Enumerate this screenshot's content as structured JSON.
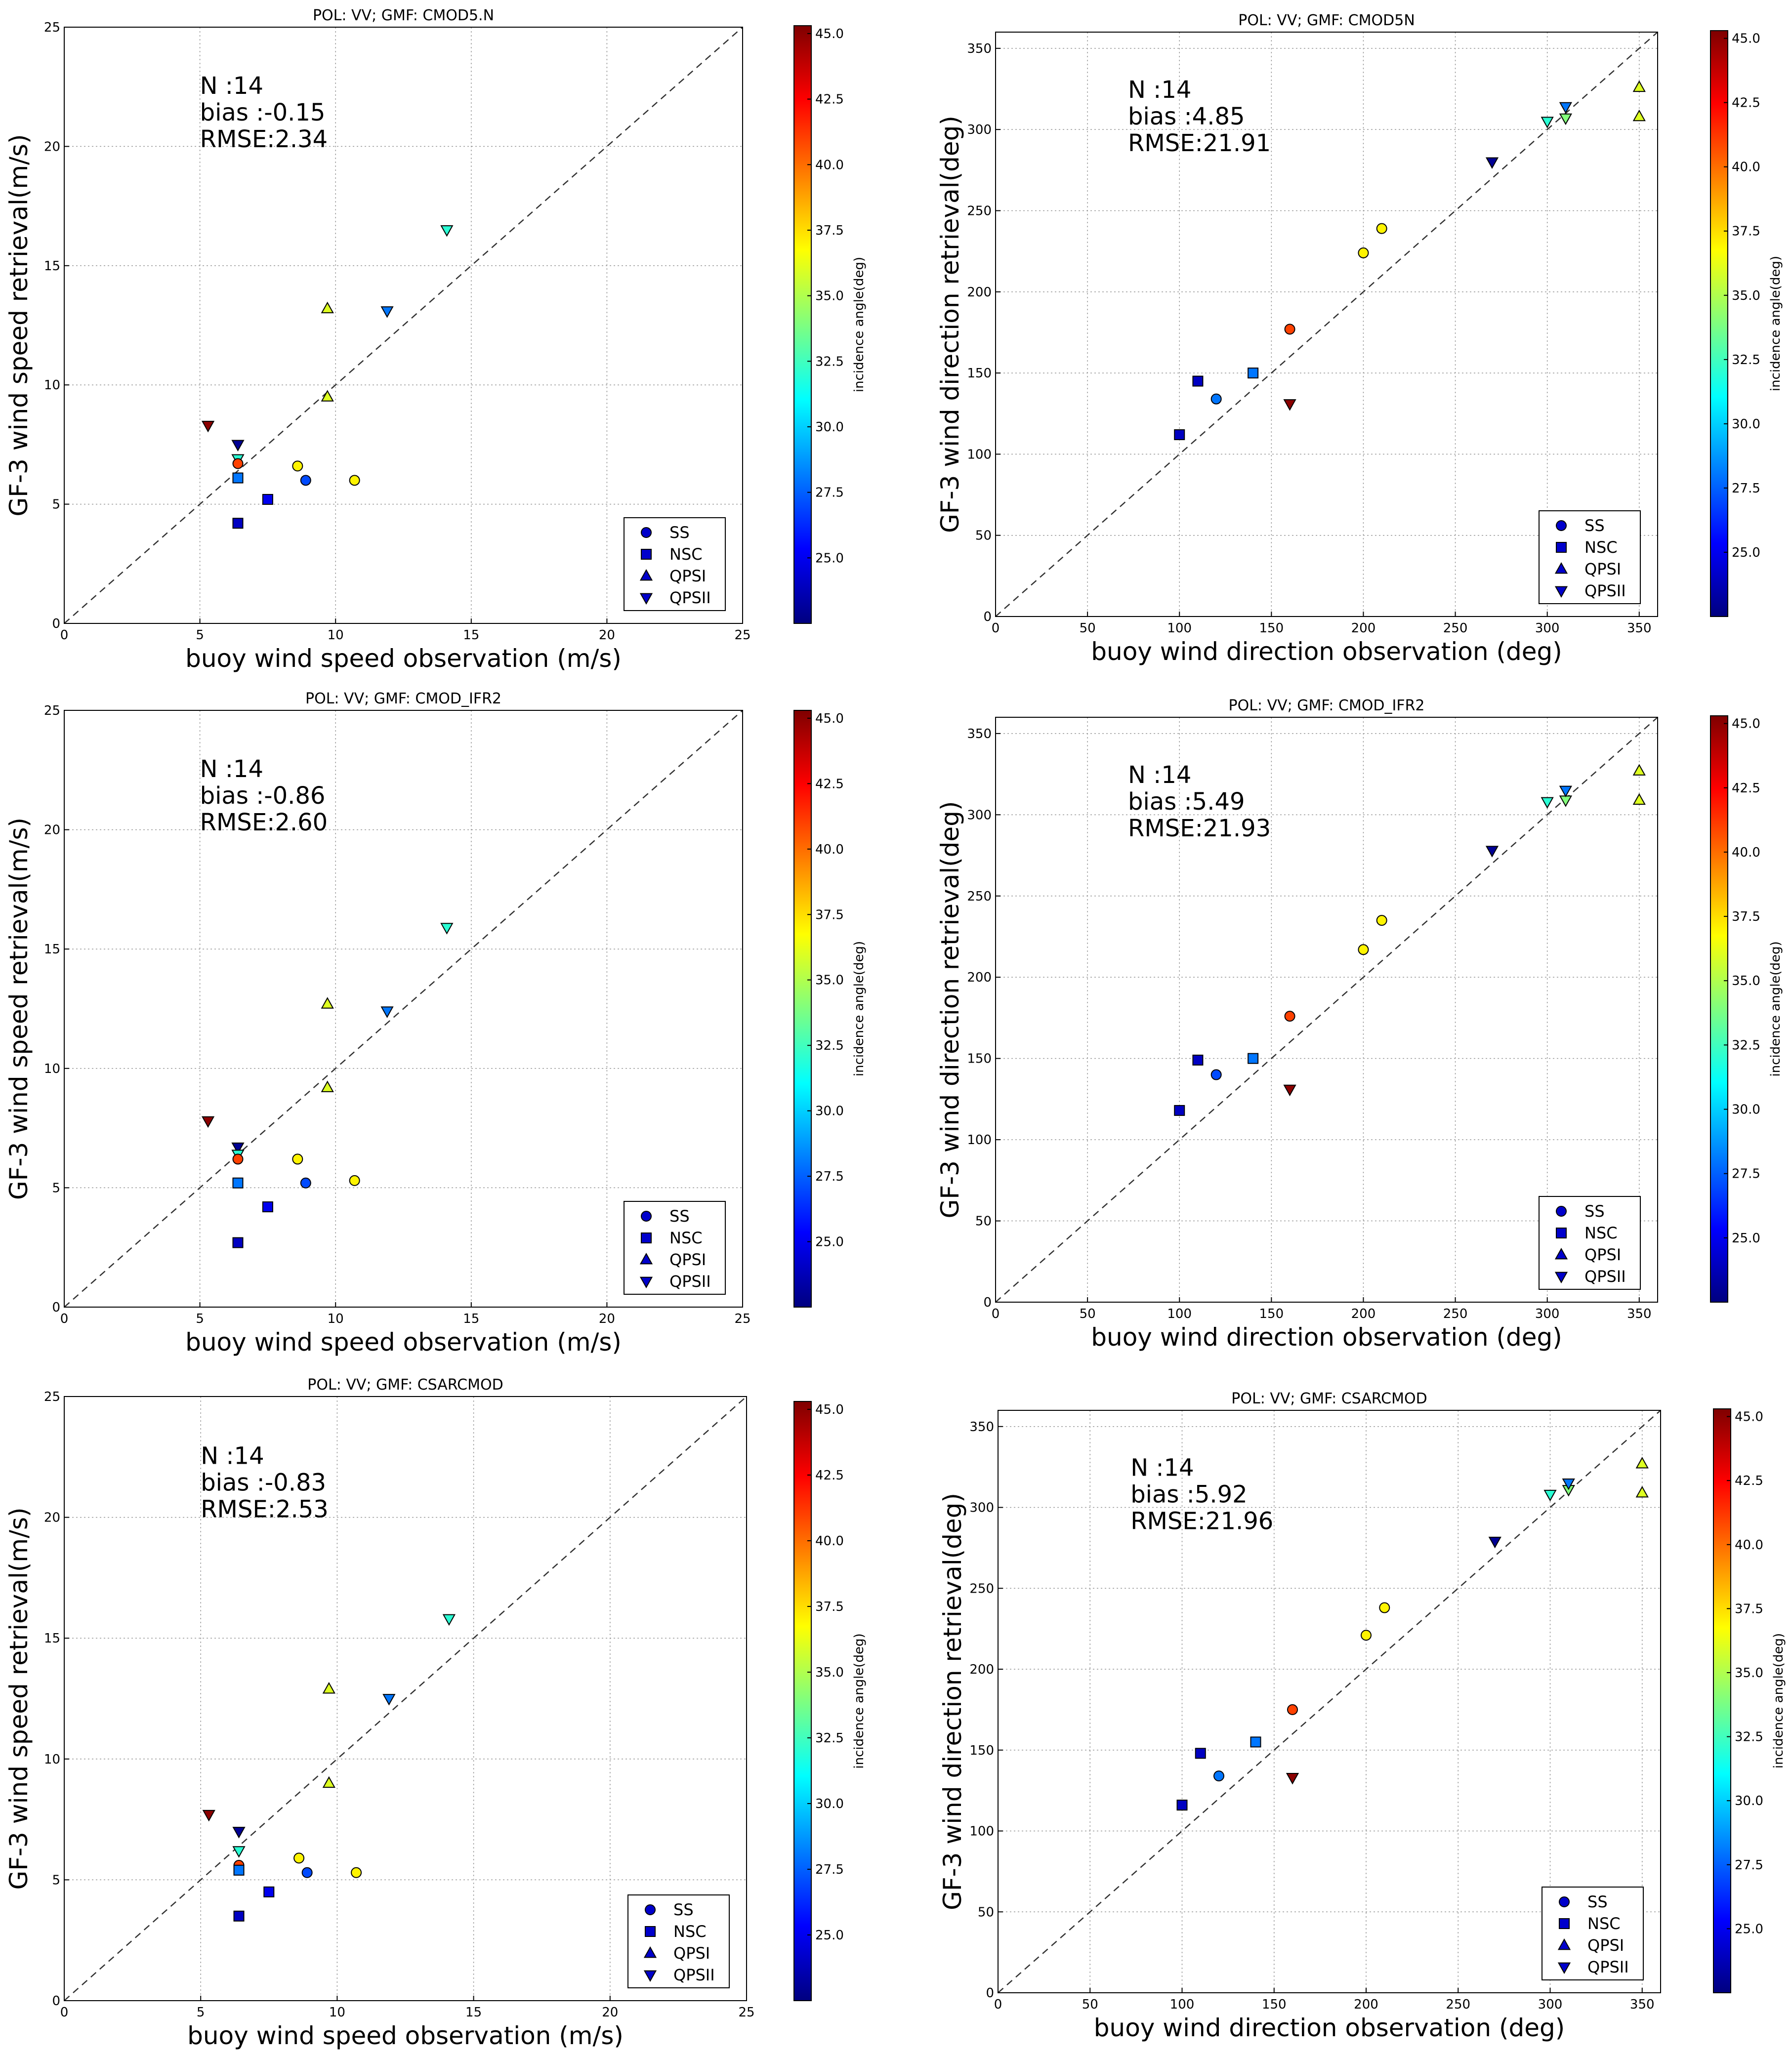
{
  "figure": {
    "colorbar_label": "incidence angle(deg)",
    "colormap": [
      "#00007f",
      "#0000ff",
      "#007fff",
      "#00ffff",
      "#7fff7f",
      "#ffff00",
      "#ff7f00",
      "#ff0000",
      "#7f0000"
    ],
    "legend": [
      {
        "label": "SS",
        "marker": "circle"
      },
      {
        "label": "NSC",
        "marker": "square"
      },
      {
        "label": "QPSI",
        "marker": "triangle-up"
      },
      {
        "label": "QPSII",
        "marker": "triangle-down"
      }
    ],
    "legend_color": "#0000cc"
  },
  "chart_data": [
    {
      "type": "scatter",
      "title": "POL: VV;  GMF: CMOD5.N",
      "xlabel": "buoy wind speed observation (m/s)",
      "ylabel": "GF-3 wind speed retrieval(m/s)",
      "xlim": [
        0,
        25
      ],
      "ylim": [
        0,
        25
      ],
      "xticks": [
        "0",
        "5",
        "10",
        "15",
        "20",
        "25"
      ],
      "yticks": [
        "0",
        "5",
        "10",
        "15",
        "20",
        "25"
      ],
      "stats": [
        "N :14",
        "bias :-0.15",
        "RMSE:2.34"
      ],
      "colorbar": {
        "range": [
          22.5,
          45.3
        ],
        "ticks": [
          "25.0",
          "27.5",
          "30.0",
          "32.5",
          "35.0",
          "37.5",
          "40.0",
          "42.5",
          "45.0"
        ]
      },
      "points": [
        {
          "x": 5.3,
          "y": 8.3,
          "angle": 45,
          "marker": "triangle-down"
        },
        {
          "x": 6.4,
          "y": 7.5,
          "angle": 23,
          "marker": "triangle-down"
        },
        {
          "x": 6.4,
          "y": 6.9,
          "angle": 32,
          "marker": "triangle-down"
        },
        {
          "x": 6.4,
          "y": 6.7,
          "angle": 41,
          "marker": "circle"
        },
        {
          "x": 6.4,
          "y": 6.1,
          "angle": 28,
          "marker": "square"
        },
        {
          "x": 6.4,
          "y": 4.2,
          "angle": 24,
          "marker": "square"
        },
        {
          "x": 7.5,
          "y": 5.2,
          "angle": 25,
          "marker": "square"
        },
        {
          "x": 8.6,
          "y": 6.6,
          "angle": 37,
          "marker": "circle"
        },
        {
          "x": 8.9,
          "y": 6.0,
          "angle": 27,
          "marker": "circle"
        },
        {
          "x": 10.7,
          "y": 6.0,
          "angle": 37,
          "marker": "circle"
        },
        {
          "x": 9.7,
          "y": 9.5,
          "angle": 36,
          "marker": "triangle-up"
        },
        {
          "x": 9.7,
          "y": 13.2,
          "angle": 36,
          "marker": "triangle-up"
        },
        {
          "x": 11.9,
          "y": 13.1,
          "angle": 28,
          "marker": "triangle-down"
        },
        {
          "x": 14.1,
          "y": 16.5,
          "angle": 32,
          "marker": "triangle-down"
        }
      ]
    },
    {
      "type": "scatter",
      "title": "POL: VV;  GMF: CMOD5N",
      "xlabel": "buoy wind direction observation (deg)",
      "ylabel": "GF-3 wind direction retrieval(deg)",
      "xlim": [
        0,
        360
      ],
      "ylim": [
        0,
        360
      ],
      "xticks": [
        "0",
        "50",
        "100",
        "150",
        "200",
        "250",
        "300",
        "350"
      ],
      "yticks": [
        "0",
        "50",
        "100",
        "150",
        "200",
        "250",
        "300",
        "350"
      ],
      "stats": [
        "N :14",
        "bias :4.85",
        "RMSE:21.91"
      ],
      "colorbar": {
        "range": [
          22.5,
          45.3
        ],
        "ticks": [
          "25.0",
          "27.5",
          "30.0",
          "32.5",
          "35.0",
          "37.5",
          "40.0",
          "42.5",
          "45.0"
        ]
      },
      "points": [
        {
          "x": 100,
          "y": 112,
          "angle": 24,
          "marker": "square"
        },
        {
          "x": 110,
          "y": 145,
          "angle": 24,
          "marker": "square"
        },
        {
          "x": 120,
          "y": 134,
          "angle": 28,
          "marker": "circle"
        },
        {
          "x": 140,
          "y": 150,
          "angle": 28,
          "marker": "square"
        },
        {
          "x": 160,
          "y": 177,
          "angle": 41,
          "marker": "circle"
        },
        {
          "x": 160,
          "y": 131,
          "angle": 45,
          "marker": "triangle-down"
        },
        {
          "x": 200,
          "y": 224,
          "angle": 37,
          "marker": "circle"
        },
        {
          "x": 210,
          "y": 239,
          "angle": 37,
          "marker": "circle"
        },
        {
          "x": 270,
          "y": 280,
          "angle": 23,
          "marker": "triangle-down"
        },
        {
          "x": 300,
          "y": 305,
          "angle": 32,
          "marker": "triangle-down"
        },
        {
          "x": 310,
          "y": 307,
          "angle": 34,
          "marker": "triangle-down"
        },
        {
          "x": 310,
          "y": 314,
          "angle": 28,
          "marker": "triangle-down"
        },
        {
          "x": 350,
          "y": 326,
          "angle": 36,
          "marker": "triangle-up"
        },
        {
          "x": 350,
          "y": 308,
          "angle": 36,
          "marker": "triangle-up"
        }
      ]
    },
    {
      "type": "scatter",
      "title": "POL: VV;  GMF: CMOD_IFR2",
      "xlabel": "buoy wind speed observation (m/s)",
      "ylabel": "GF-3 wind speed retrieval(m/s)",
      "xlim": [
        0,
        25
      ],
      "ylim": [
        0,
        25
      ],
      "xticks": [
        "0",
        "5",
        "10",
        "15",
        "20",
        "25"
      ],
      "yticks": [
        "0",
        "5",
        "10",
        "15",
        "20",
        "25"
      ],
      "stats": [
        "N :14",
        "bias :-0.86",
        "RMSE:2.60"
      ],
      "colorbar": {
        "range": [
          22.5,
          45.3
        ],
        "ticks": [
          "25.0",
          "27.5",
          "30.0",
          "32.5",
          "35.0",
          "37.5",
          "40.0",
          "42.5",
          "45.0"
        ]
      },
      "points": [
        {
          "x": 5.3,
          "y": 7.8,
          "angle": 45,
          "marker": "triangle-down"
        },
        {
          "x": 6.4,
          "y": 6.7,
          "angle": 23,
          "marker": "triangle-down"
        },
        {
          "x": 6.4,
          "y": 6.4,
          "angle": 32,
          "marker": "triangle-down"
        },
        {
          "x": 6.4,
          "y": 6.2,
          "angle": 41,
          "marker": "circle"
        },
        {
          "x": 6.4,
          "y": 5.2,
          "angle": 28,
          "marker": "square"
        },
        {
          "x": 6.4,
          "y": 2.7,
          "angle": 24,
          "marker": "square"
        },
        {
          "x": 7.5,
          "y": 4.2,
          "angle": 25,
          "marker": "square"
        },
        {
          "x": 8.6,
          "y": 6.2,
          "angle": 37,
          "marker": "circle"
        },
        {
          "x": 8.9,
          "y": 5.2,
          "angle": 27,
          "marker": "circle"
        },
        {
          "x": 10.7,
          "y": 5.3,
          "angle": 37,
          "marker": "circle"
        },
        {
          "x": 9.7,
          "y": 9.2,
          "angle": 36,
          "marker": "triangle-up"
        },
        {
          "x": 9.7,
          "y": 12.7,
          "angle": 36,
          "marker": "triangle-up"
        },
        {
          "x": 11.9,
          "y": 12.4,
          "angle": 28,
          "marker": "triangle-down"
        },
        {
          "x": 14.1,
          "y": 15.9,
          "angle": 32,
          "marker": "triangle-down"
        }
      ]
    },
    {
      "type": "scatter",
      "title": "POL: VV;  GMF: CMOD_IFR2",
      "xlabel": "buoy wind direction observation (deg)",
      "ylabel": "GF-3 wind direction retrieval(deg)",
      "xlim": [
        0,
        360
      ],
      "ylim": [
        0,
        360
      ],
      "xticks": [
        "0",
        "50",
        "100",
        "150",
        "200",
        "250",
        "300",
        "350"
      ],
      "yticks": [
        "0",
        "50",
        "100",
        "150",
        "200",
        "250",
        "300",
        "350"
      ],
      "stats": [
        "N :14",
        "bias :5.49",
        "RMSE:21.93"
      ],
      "colorbar": {
        "range": [
          22.5,
          45.3
        ],
        "ticks": [
          "25.0",
          "27.5",
          "30.0",
          "32.5",
          "35.0",
          "37.5",
          "40.0",
          "42.5",
          "45.0"
        ]
      },
      "points": [
        {
          "x": 100,
          "y": 118,
          "angle": 24,
          "marker": "square"
        },
        {
          "x": 110,
          "y": 149,
          "angle": 24,
          "marker": "square"
        },
        {
          "x": 120,
          "y": 140,
          "angle": 27,
          "marker": "circle"
        },
        {
          "x": 140,
          "y": 150,
          "angle": 28,
          "marker": "square"
        },
        {
          "x": 160,
          "y": 176,
          "angle": 41,
          "marker": "circle"
        },
        {
          "x": 160,
          "y": 131,
          "angle": 45,
          "marker": "triangle-down"
        },
        {
          "x": 200,
          "y": 217,
          "angle": 37,
          "marker": "circle"
        },
        {
          "x": 210,
          "y": 235,
          "angle": 37,
          "marker": "circle"
        },
        {
          "x": 270,
          "y": 278,
          "angle": 23,
          "marker": "triangle-down"
        },
        {
          "x": 300,
          "y": 308,
          "angle": 32,
          "marker": "triangle-down"
        },
        {
          "x": 310,
          "y": 309,
          "angle": 34,
          "marker": "triangle-down"
        },
        {
          "x": 310,
          "y": 315,
          "angle": 28,
          "marker": "triangle-down"
        },
        {
          "x": 350,
          "y": 327,
          "angle": 36,
          "marker": "triangle-up"
        },
        {
          "x": 350,
          "y": 309,
          "angle": 36,
          "marker": "triangle-up"
        }
      ]
    },
    {
      "type": "scatter",
      "title": "POL: VV;  GMF: CSARCMOD",
      "xlabel": "buoy wind speed observation (m/s)",
      "ylabel": "GF-3 wind speed retrieval(m/s)",
      "xlim": [
        0,
        25
      ],
      "ylim": [
        0,
        25
      ],
      "xticks": [
        "0",
        "5",
        "10",
        "15",
        "20",
        "25"
      ],
      "yticks": [
        "0",
        "5",
        "10",
        "15",
        "20",
        "25"
      ],
      "stats": [
        "N :14",
        "bias :-0.83",
        "RMSE:2.53"
      ],
      "colorbar": {
        "range": [
          22.5,
          45.3
        ],
        "ticks": [
          "25.0",
          "27.5",
          "30.0",
          "32.5",
          "35.0",
          "37.5",
          "40.0",
          "42.5",
          "45.0"
        ]
      },
      "points": [
        {
          "x": 5.3,
          "y": 7.7,
          "angle": 45,
          "marker": "triangle-down"
        },
        {
          "x": 6.4,
          "y": 7.0,
          "angle": 23,
          "marker": "triangle-down"
        },
        {
          "x": 6.4,
          "y": 6.2,
          "angle": 32,
          "marker": "triangle-down"
        },
        {
          "x": 6.4,
          "y": 5.6,
          "angle": 41,
          "marker": "circle"
        },
        {
          "x": 6.4,
          "y": 5.4,
          "angle": 28,
          "marker": "square"
        },
        {
          "x": 6.4,
          "y": 3.5,
          "angle": 24,
          "marker": "square"
        },
        {
          "x": 7.5,
          "y": 4.5,
          "angle": 25,
          "marker": "square"
        },
        {
          "x": 8.6,
          "y": 5.9,
          "angle": 37,
          "marker": "circle"
        },
        {
          "x": 8.9,
          "y": 5.3,
          "angle": 27,
          "marker": "circle"
        },
        {
          "x": 10.7,
          "y": 5.3,
          "angle": 37,
          "marker": "circle"
        },
        {
          "x": 9.7,
          "y": 9.0,
          "angle": 36,
          "marker": "triangle-up"
        },
        {
          "x": 9.7,
          "y": 12.9,
          "angle": 36,
          "marker": "triangle-up"
        },
        {
          "x": 11.9,
          "y": 12.5,
          "angle": 28,
          "marker": "triangle-down"
        },
        {
          "x": 14.1,
          "y": 15.8,
          "angle": 32,
          "marker": "triangle-down"
        }
      ]
    },
    {
      "type": "scatter",
      "title": "POL: VV;  GMF: CSARCMOD",
      "xlabel": "buoy wind direction observation (deg)",
      "ylabel": "GF-3 wind direction retrieval(deg)",
      "xlim": [
        0,
        360
      ],
      "ylim": [
        0,
        360
      ],
      "xticks": [
        "0",
        "50",
        "100",
        "150",
        "200",
        "250",
        "300",
        "350"
      ],
      "yticks": [
        "0",
        "50",
        "100",
        "150",
        "200",
        "250",
        "300",
        "350"
      ],
      "stats": [
        "N :14",
        "bias :5.92",
        "RMSE:21.96"
      ],
      "colorbar": {
        "range": [
          22.5,
          45.3
        ],
        "ticks": [
          "25.0",
          "27.5",
          "30.0",
          "32.5",
          "35.0",
          "37.5",
          "40.0",
          "42.5",
          "45.0"
        ]
      },
      "points": [
        {
          "x": 100,
          "y": 116,
          "angle": 24,
          "marker": "square"
        },
        {
          "x": 110,
          "y": 148,
          "angle": 24,
          "marker": "square"
        },
        {
          "x": 120,
          "y": 134,
          "angle": 28,
          "marker": "circle"
        },
        {
          "x": 140,
          "y": 155,
          "angle": 28,
          "marker": "square"
        },
        {
          "x": 160,
          "y": 175,
          "angle": 41,
          "marker": "circle"
        },
        {
          "x": 160,
          "y": 133,
          "angle": 45,
          "marker": "triangle-down"
        },
        {
          "x": 200,
          "y": 221,
          "angle": 37,
          "marker": "circle"
        },
        {
          "x": 210,
          "y": 238,
          "angle": 37,
          "marker": "circle"
        },
        {
          "x": 270,
          "y": 279,
          "angle": 23,
          "marker": "triangle-down"
        },
        {
          "x": 300,
          "y": 308,
          "angle": 32,
          "marker": "triangle-down"
        },
        {
          "x": 310,
          "y": 311,
          "angle": 34,
          "marker": "triangle-down"
        },
        {
          "x": 310,
          "y": 315,
          "angle": 28,
          "marker": "triangle-down"
        },
        {
          "x": 350,
          "y": 327,
          "angle": 36,
          "marker": "triangle-up"
        },
        {
          "x": 350,
          "y": 309,
          "angle": 36,
          "marker": "triangle-up"
        }
      ]
    }
  ]
}
